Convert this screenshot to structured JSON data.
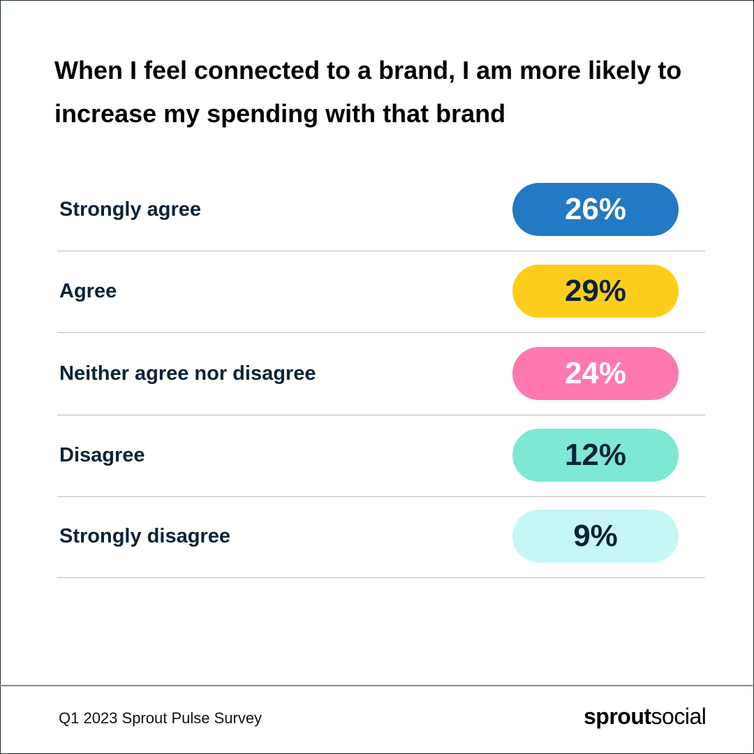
{
  "chart_data": {
    "type": "table",
    "title": "When I feel connected to a brand, I am more likely to increase my spending with that brand",
    "categories": [
      "Strongly agree",
      "Agree",
      "Neither agree nor disagree",
      "Disagree",
      "Strongly disagree"
    ],
    "values": [
      26,
      29,
      24,
      12,
      9
    ],
    "value_labels": [
      "26%",
      "29%",
      "24%",
      "12%",
      "9%"
    ],
    "colors": [
      "#2279c4",
      "#fecd1c",
      "#ff78b0",
      "#7ee8d4",
      "#c6f6f6"
    ],
    "text_colors": [
      "#ffffff",
      "#0b2238",
      "#ffffff",
      "#0b2238",
      "#0b2238"
    ]
  },
  "footer": {
    "source": "Q1 2023 Sprout Pulse Survey",
    "logo": "sproutsocial"
  }
}
